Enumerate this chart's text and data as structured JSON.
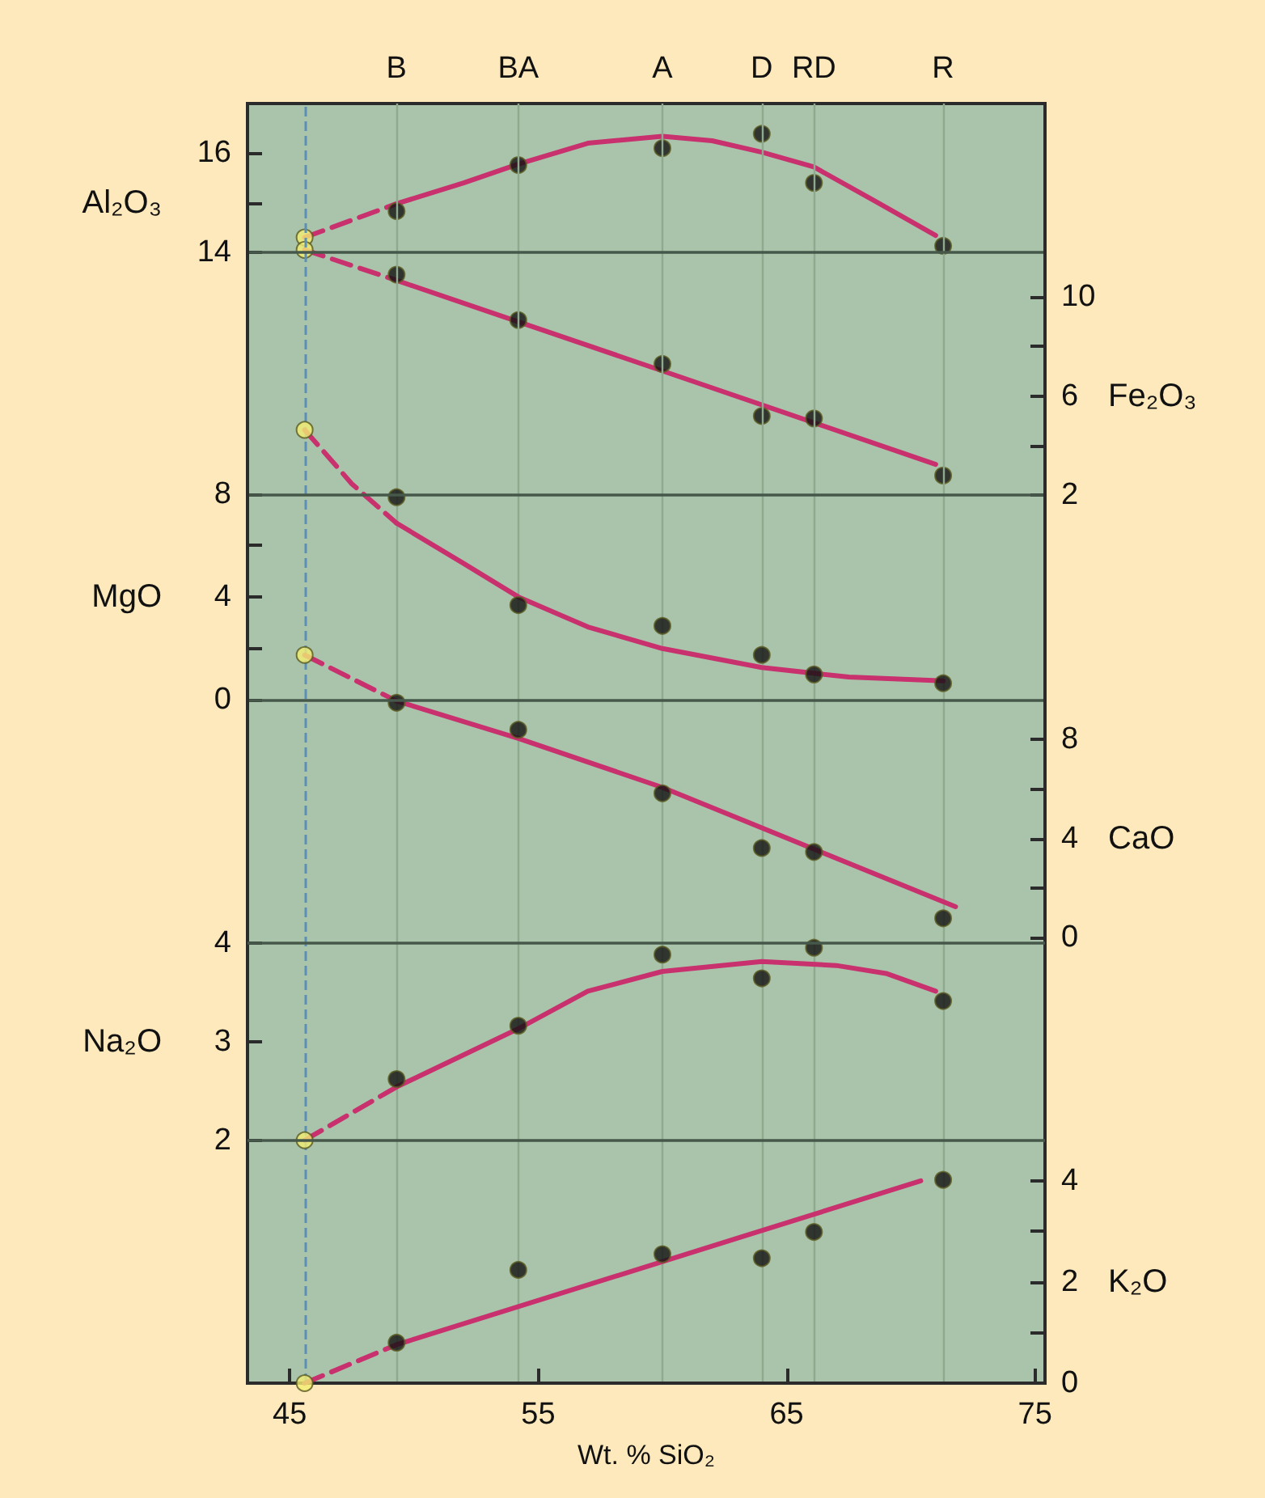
{
  "chart_data": [
    {
      "type": "scatter",
      "ylabel": "Al₂O₃",
      "y2label": "Fe₂O₃",
      "tick_labels": "y",
      "xlim": [
        43.3,
        75.4
      ],
      "xticks": [
        45,
        55,
        65,
        75
      ],
      "ylim": [
        -8.8,
        17
      ],
      "yticks": [
        14,
        {
          "value": 15,
          "label": null
        },
        16
      ],
      "y2lim": [
        -33.8,
        17.8
      ],
      "y2ticks": [
        2,
        {
          "value": 4,
          "label": null
        },
        6,
        {
          "value": 8,
          "label": null
        },
        10
      ],
      "marker": "circle",
      "ref_lines": [
        {
          "axis": "x",
          "value": 49.3,
          "label": "B",
          "color": "#8fa98f"
        },
        {
          "axis": "x",
          "value": 54.2,
          "label": "BA",
          "color": "#8fa98f"
        },
        {
          "axis": "x",
          "value": 60,
          "label": "A",
          "color": "#8fa98f"
        },
        {
          "axis": "x",
          "value": 64,
          "label": "D",
          "color": "#8fa98f"
        },
        {
          "axis": "x",
          "value": 66.1,
          "label": "RD",
          "color": "#8fa98f"
        },
        {
          "axis": "x",
          "value": 71.3,
          "label": "R",
          "color": "#8fa98f"
        },
        {
          "axis": "x",
          "value": 45.6,
          "color": "#5d8fb5",
          "line_style": "dashed"
        },
        {
          "axis": "y",
          "value": 14,
          "color": "#46584a"
        }
      ],
      "series": [
        {
          "type": "line",
          "axis": "y",
          "color": "#c8306e",
          "marker": "none",
          "line_style": "dashed",
          "x": [
            45.6,
            49.3
          ],
          "values": [
            14.3,
            14.98
          ]
        },
        {
          "type": "line",
          "axis": "y",
          "color": "#c8306e",
          "marker": "none",
          "line_style": "solid",
          "x": [
            49.3,
            52,
            54.2,
            57,
            60,
            62,
            64,
            66.1,
            68.5,
            71
          ],
          "values": [
            14.98,
            15.4,
            15.78,
            16.2,
            16.34,
            16.25,
            16.02,
            15.72,
            15.05,
            14.34
          ]
        },
        {
          "axis": "y",
          "color": "#111111",
          "x": [
            49.3,
            54.2,
            60,
            64,
            66.1,
            71.3
          ],
          "values": [
            14.83,
            15.76,
            16.1,
            16.39,
            15.4,
            14.13
          ]
        },
        {
          "axis": "y",
          "color": "#f2ee72",
          "x": [
            45.6
          ],
          "values": [
            14.3
          ]
        },
        {
          "type": "line",
          "axis": "y2",
          "color": "#c8306e",
          "marker": "none",
          "line_style": "dashed",
          "x": [
            45.6,
            49.3
          ],
          "values": [
            11.9,
            10.67
          ]
        },
        {
          "type": "line",
          "axis": "y2",
          "color": "#c8306e",
          "marker": "none",
          "line_style": "solid",
          "x": [
            49.3,
            60,
            71
          ],
          "values": [
            10.67,
            7.02,
            3.25
          ]
        },
        {
          "axis": "y2",
          "color": "#111111",
          "x": [
            49.3,
            54.2,
            60,
            64,
            66.1,
            71.3
          ],
          "values": [
            10.9,
            9.07,
            7.3,
            5.2,
            5.1,
            2.8
          ]
        },
        {
          "axis": "y2",
          "color": "#f2ee72",
          "x": [
            45.6
          ],
          "values": [
            11.9
          ]
        }
      ]
    },
    {
      "type": "scatter",
      "ylabel": "MgO",
      "y2label": "CaO",
      "tick_labels": "y",
      "xlim": [
        43.3,
        75.4
      ],
      "xticks": [
        45,
        55,
        65,
        75
      ],
      "ylim": [
        -26.6,
        23.2
      ],
      "yticks": [
        0,
        {
          "value": 2,
          "label": null
        },
        4,
        {
          "value": 6,
          "label": null
        },
        8
      ],
      "y2lim": [
        -18,
        33.7
      ],
      "y2ticks": [
        0,
        {
          "value": 2,
          "label": null
        },
        4,
        {
          "value": 6,
          "label": null
        },
        8
      ],
      "marker": "circle",
      "ref_lines": [
        {
          "axis": "y",
          "value": 8,
          "color": "#46584a"
        },
        {
          "axis": "y",
          "value": 0,
          "color": "#46584a"
        }
      ],
      "series": [
        {
          "type": "line",
          "axis": "y",
          "color": "#c8306e",
          "marker": "none",
          "line_style": "dashed",
          "x": [
            45.6,
            47.5,
            49.3
          ],
          "values": [
            10.5,
            8.4,
            6.87
          ]
        },
        {
          "type": "line",
          "axis": "y",
          "color": "#c8306e",
          "marker": "none",
          "line_style": "solid",
          "x": [
            49.3,
            52,
            54.2,
            57,
            60,
            64,
            67.5,
            71.3
          ],
          "values": [
            6.87,
            5.3,
            4.0,
            2.83,
            1.99,
            1.25,
            0.88,
            0.73
          ]
        },
        {
          "axis": "y",
          "color": "#111111",
          "x": [
            49.3,
            54.2,
            60,
            64,
            66.1,
            71.3
          ],
          "values": [
            7.88,
            3.68,
            2.87,
            1.74,
            0.98,
            0.64
          ]
        },
        {
          "axis": "y",
          "color": "#f2ee72",
          "x": [
            45.6
          ],
          "values": [
            10.5
          ]
        },
        {
          "type": "line",
          "axis": "y2",
          "color": "#c8306e",
          "marker": "none",
          "line_style": "dashed",
          "x": [
            45.6,
            49.3
          ],
          "values": [
            11.42,
            9.56
          ]
        },
        {
          "type": "line",
          "axis": "y2",
          "color": "#c8306e",
          "marker": "none",
          "line_style": "solid",
          "x": [
            49.3,
            54.2,
            60,
            71.8
          ],
          "values": [
            9.56,
            8.05,
            6.07,
            1.25
          ]
        },
        {
          "axis": "y2",
          "color": "#111111",
          "x": [
            49.3,
            54.2,
            60,
            64,
            66.1,
            71.3
          ],
          "values": [
            9.49,
            8.4,
            5.83,
            3.62,
            3.46,
            0.78
          ]
        },
        {
          "axis": "y2",
          "color": "#f2ee72",
          "x": [
            45.6
          ],
          "values": [
            11.42
          ]
        }
      ]
    },
    {
      "type": "scatter",
      "xlabel": "Wt. % SiO₂",
      "ylabel": "Na₂O",
      "y2label": "K₂O",
      "xlim": [
        43.3,
        75.4
      ],
      "xticks": [
        45,
        55,
        65,
        75
      ],
      "ylim": [
        -0.46,
        12.5
      ],
      "yticks": [
        2,
        3,
        4
      ],
      "y2lim": [
        0,
        25.3
      ],
      "y2ticks": [
        0,
        {
          "value": 1,
          "label": null
        },
        2,
        {
          "value": 3,
          "label": null
        },
        4
      ],
      "marker": "circle",
      "ref_lines": [
        {
          "axis": "y",
          "value": 4,
          "color": "#46584a"
        },
        {
          "axis": "y",
          "value": 2,
          "color": "#46584a"
        }
      ],
      "series": [
        {
          "type": "line",
          "axis": "y",
          "color": "#c8306e",
          "marker": "none",
          "line_style": "dashed",
          "x": [
            45.6,
            49.3
          ],
          "values": [
            2.0,
            2.54
          ]
        },
        {
          "type": "line",
          "axis": "y",
          "color": "#c8306e",
          "marker": "none",
          "line_style": "solid",
          "x": [
            49.3,
            54.2,
            57,
            60,
            64,
            67,
            69,
            71
          ],
          "values": [
            2.54,
            3.13,
            3.51,
            3.71,
            3.81,
            3.77,
            3.69,
            3.51
          ]
        },
        {
          "axis": "y",
          "color": "#111111",
          "x": [
            49.3,
            54.2,
            60,
            64,
            66.1,
            71.3
          ],
          "values": [
            2.62,
            3.16,
            3.88,
            3.64,
            3.95,
            3.41
          ]
        },
        {
          "axis": "y",
          "color": "#f2ee72",
          "x": [
            45.6
          ],
          "values": [
            2.0
          ]
        },
        {
          "type": "line",
          "axis": "y2",
          "color": "#c8306e",
          "marker": "none",
          "line_style": "dashed",
          "x": [
            45.6,
            49.3
          ],
          "values": [
            0,
            0.76
          ]
        },
        {
          "type": "line",
          "axis": "y2",
          "color": "#c8306e",
          "marker": "none",
          "line_style": "solid",
          "x": [
            49.3,
            70.4
          ],
          "values": [
            0.76,
            4.0
          ]
        },
        {
          "axis": "y2",
          "color": "#111111",
          "x": [
            49.3,
            54.2,
            60,
            64,
            66.1,
            71.3
          ],
          "values": [
            0.8,
            2.24,
            2.55,
            2.47,
            2.99,
            4.02
          ]
        },
        {
          "axis": "y2",
          "color": "#f2ee72",
          "x": [
            45.6
          ],
          "values": [
            0
          ]
        }
      ]
    }
  ]
}
